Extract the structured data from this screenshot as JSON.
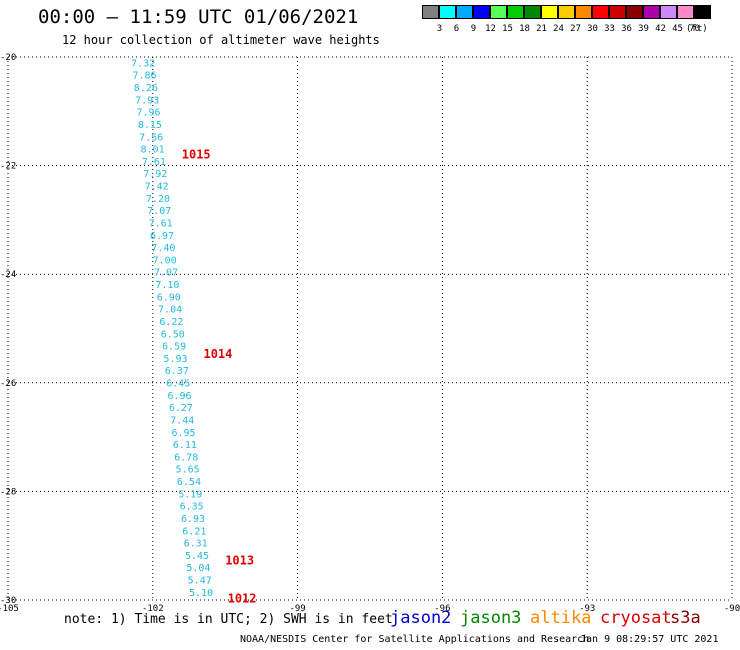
{
  "header": {
    "title": "00:00 – 11:59 UTC 01/06/2021",
    "subtitle": "12 hour collection of altimeter wave heights"
  },
  "legend": {
    "unit": "(ft)",
    "bins": [
      {
        "label": "3",
        "color": "#808080"
      },
      {
        "label": "6",
        "color": "#00ffff"
      },
      {
        "label": "9",
        "color": "#00aaff"
      },
      {
        "label": "12",
        "color": "#0000ff"
      },
      {
        "label": "15",
        "color": "#55ff55"
      },
      {
        "label": "18",
        "color": "#00cc00"
      },
      {
        "label": "21",
        "color": "#008800"
      },
      {
        "label": "24",
        "color": "#ffff00"
      },
      {
        "label": "27",
        "color": "#ffcc00"
      },
      {
        "label": "30",
        "color": "#ff8800"
      },
      {
        "label": "33",
        "color": "#ff0000"
      },
      {
        "label": "36",
        "color": "#cc0000"
      },
      {
        "label": "39",
        "color": "#880000"
      },
      {
        "label": "42",
        "color": "#aa00aa"
      },
      {
        "label": "45",
        "color": "#cc88ff"
      },
      {
        "label": "70",
        "color": "#ff88cc"
      },
      {
        "label": "",
        "color": "#000000"
      }
    ]
  },
  "map": {
    "lat_ticks": [
      "-20",
      "-22",
      "-24",
      "-26",
      "-28",
      "-30"
    ],
    "lon_ticks": [
      "-105",
      "-102",
      "-99",
      "-96",
      "-93",
      "-90"
    ],
    "wave_color": "#22bbdd",
    "wave_heights": [
      "7.32",
      "7.86",
      "8.26",
      "7.93",
      "7.96",
      "8.15",
      "7.56",
      "8.01",
      "7.61",
      "7.92",
      "7.42",
      "7.20",
      "7.07",
      "7.61",
      "6.97",
      "7.40",
      "7.00",
      "7.07",
      "7.10",
      "6.90",
      "7.04",
      "6.22",
      "6.50",
      "6.59",
      "5.93",
      "6.37",
      "6.45",
      "6.96",
      "6.27",
      "7.44",
      "6.95",
      "6.11",
      "6.78",
      "5.65",
      "6.54",
      "5.19",
      "6.35",
      "6.93",
      "6.21",
      "6.31",
      "5.45",
      "5.04",
      "5.47",
      "5.10"
    ],
    "pressure_labels": [
      {
        "value": "1015",
        "lat": -21.78,
        "lon": -101.4
      },
      {
        "value": "1014",
        "lat": -25.45,
        "lon": -100.95
      },
      {
        "value": "1013",
        "lat": -29.25,
        "lon": -100.5
      },
      {
        "value": "1012",
        "lat": -29.95,
        "lon": -100.45
      }
    ]
  },
  "footer": {
    "note": "note: 1) Time is in UTC; 2) SWH is in feet",
    "satellites": [
      {
        "name": "jason2",
        "color": "#0000cc"
      },
      {
        "name": "jason3",
        "color": "#008800"
      },
      {
        "name": "altika",
        "color": "#ff8800"
      },
      {
        "name": "cryosat",
        "color": "#dd0000"
      },
      {
        "name": "s3a",
        "color": "#880000"
      }
    ],
    "org": "NOAA/NESDIS Center for Satellite Applications and Research",
    "timestamp": "Jan  9 08:29:57 UTC 2021"
  }
}
